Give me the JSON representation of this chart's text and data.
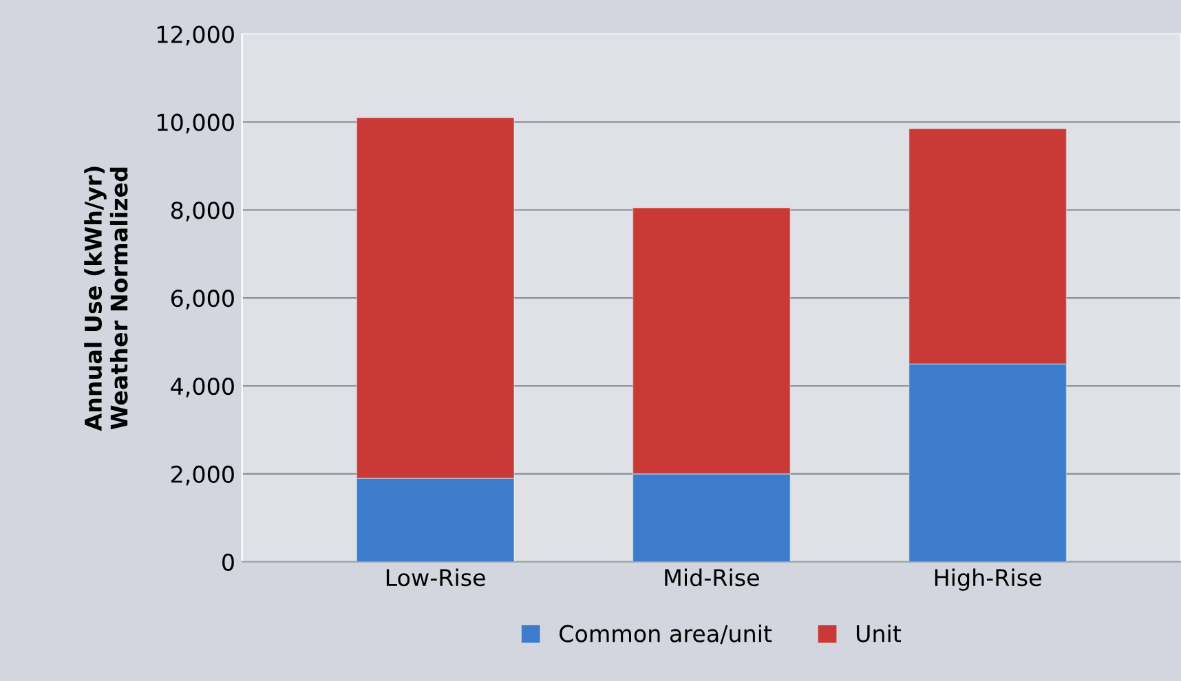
{
  "chart_data": {
    "type": "bar",
    "stacked": true,
    "ylabel": "Annual Use (kWh/yr)\nWeather Normalized",
    "categories": [
      "Low-Rise",
      "Mid-Rise",
      "High-Rise"
    ],
    "series": [
      {
        "name": "Common area/unit",
        "color": "#3d7ccc",
        "values": [
          1900,
          2000,
          4500
        ]
      },
      {
        "name": "Unit",
        "color": "#c93a36",
        "values": [
          8200,
          6050,
          5350
        ]
      }
    ],
    "ylim": [
      0,
      12000
    ],
    "yticks": [
      {
        "value": 0,
        "label": "0"
      },
      {
        "value": 2000,
        "label": "2,000"
      },
      {
        "value": 4000,
        "label": "4,000"
      },
      {
        "value": 6000,
        "label": "6,000"
      },
      {
        "value": 8000,
        "label": "8,000"
      },
      {
        "value": 10000,
        "label": "10,000"
      },
      {
        "value": 12000,
        "label": "12,000"
      }
    ],
    "grid": "y",
    "legend": "bottom"
  }
}
